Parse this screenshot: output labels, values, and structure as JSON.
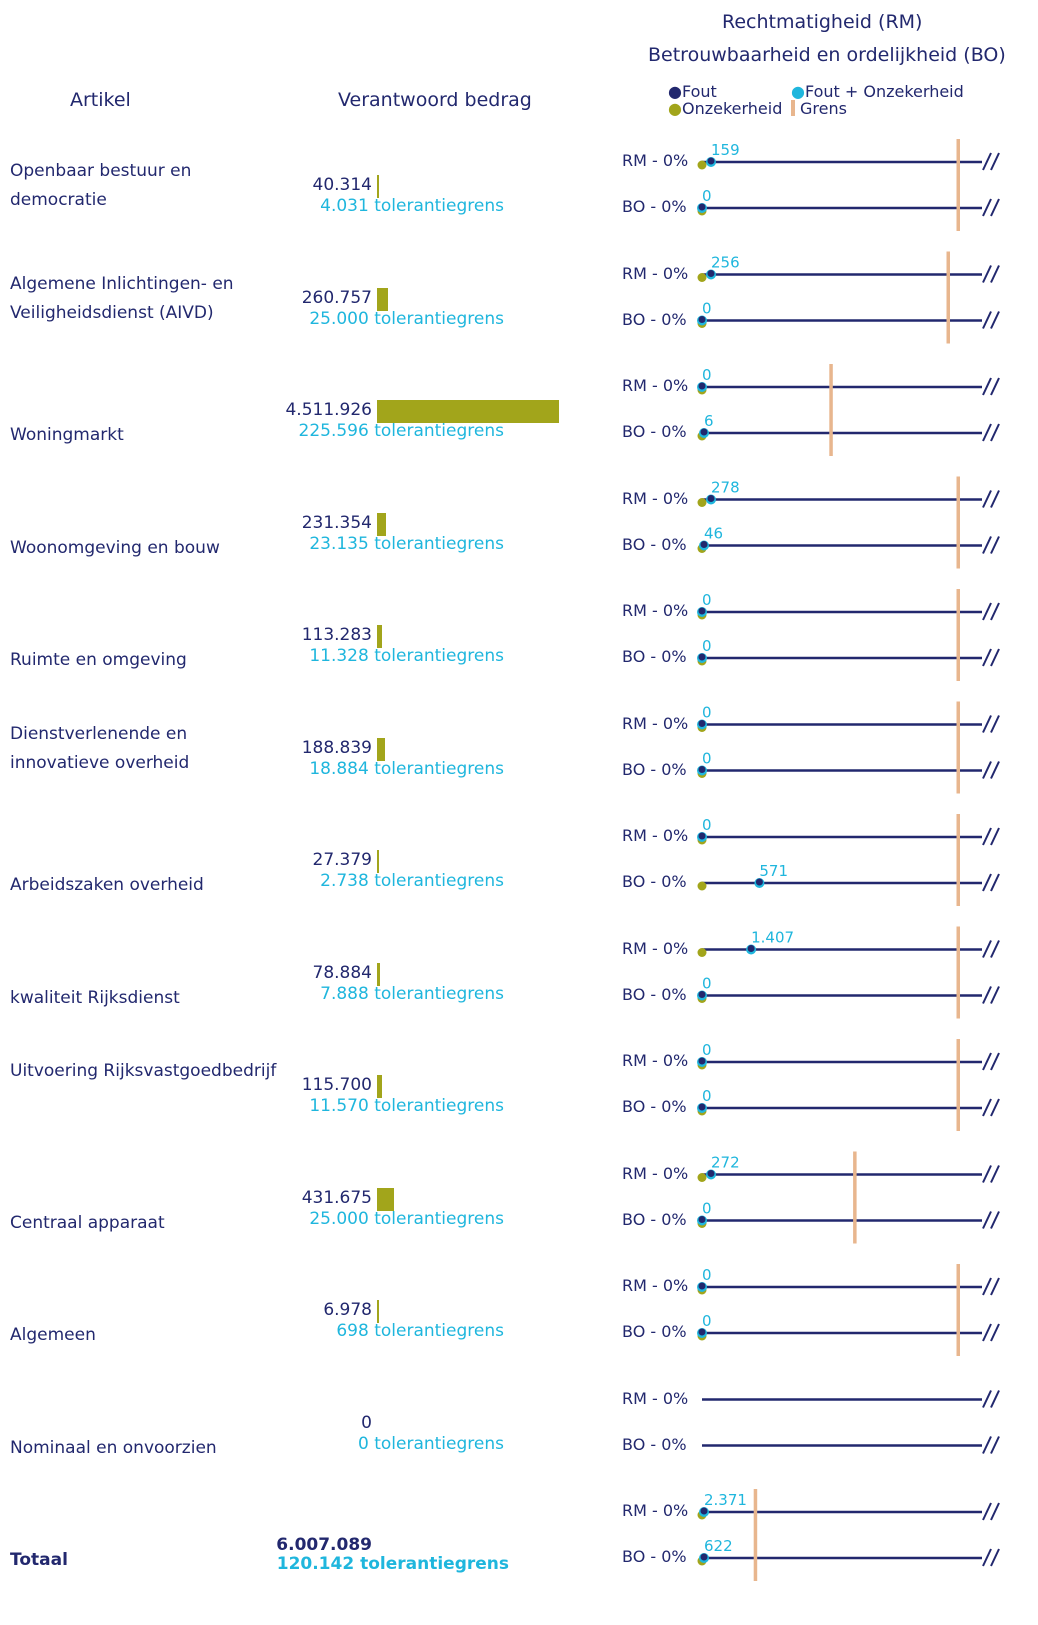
{
  "header": {
    "artikel": "Artikel",
    "verantwoord": "Verantwoord bedrag",
    "rm_title": "Rechtmatigheid (RM)",
    "bo_title": "Betrouwbaarheid en ordelijkheid (BO)"
  },
  "legend": {
    "fout": "Fout",
    "fout_onzekerheid": "Fout + Onzekerheid",
    "onzekerheid": "Onzekerheid",
    "grens": "Grens"
  },
  "colors": {
    "navy": "#22286e",
    "cyan": "#1fb6dd",
    "olive": "#a2a51b",
    "grens": "#e8b68e"
  },
  "tolerance_suffix": "tolerantiegrens",
  "row_labels": {
    "rm": "RM - 0%",
    "bo": "BO - 0%"
  },
  "chart_data": {
    "type": "bar",
    "bar_max": 4511926,
    "rows": [
      {
        "artikel": "Openbaar bestuur en democratie",
        "amount": 40314,
        "amount_label": "40.314",
        "tolerance_label": "4.031",
        "rm": {
          "value": 159,
          "label": "159",
          "fout": 159,
          "onzekerheid": 0
        },
        "bo": {
          "value": 0,
          "label": "0",
          "fout": 0,
          "onzekerheid": 0
        },
        "grens": 4031,
        "grens_frac": 0.983
      },
      {
        "artikel": "Algemene Inlichtingen- en Veiligheidsdienst (AIVD)",
        "amount": 260757,
        "amount_label": "260.757",
        "tolerance_label": "25.000",
        "rm": {
          "value": 256,
          "label": "256",
          "fout": 0,
          "onzekerheid": 0
        },
        "bo": {
          "value": 0,
          "label": "0",
          "fout": 0,
          "onzekerheid": 0
        },
        "grens": 25000,
        "grens_frac": 0.962
      },
      {
        "artikel": "Woningmarkt",
        "amount": 4511926,
        "amount_label": "4.511.926",
        "tolerance_label": "225.596",
        "rm": {
          "value": 0,
          "label": "0",
          "fout": 0,
          "onzekerheid": 0
        },
        "bo": {
          "value": 6,
          "label": "6",
          "fout": 0,
          "onzekerheid": 0
        },
        "grens": 225596,
        "grens_frac": 0.46
      },
      {
        "artikel": "Woonomgeving en bouw",
        "amount": 231354,
        "amount_label": "231.354",
        "tolerance_label": "23.135",
        "rm": {
          "value": 278,
          "label": "278",
          "fout": 0,
          "onzekerheid": 0
        },
        "bo": {
          "value": 46,
          "label": "46",
          "fout": 0,
          "onzekerheid": 0
        },
        "grens": 23135,
        "grens_frac": 0.983
      },
      {
        "artikel": "Ruimte en omgeving",
        "amount": 113283,
        "amount_label": "113.283",
        "tolerance_label": "11.328",
        "rm": {
          "value": 0,
          "label": "0",
          "fout": 0,
          "onzekerheid": 0
        },
        "bo": {
          "value": 0,
          "label": "0",
          "fout": 0,
          "onzekerheid": 0
        },
        "grens": 11328,
        "grens_frac": 0.983
      },
      {
        "artikel": "Dienstverlenende en innovatieve overheid",
        "amount": 188839,
        "amount_label": "188.839",
        "tolerance_label": "18.884",
        "rm": {
          "value": 0,
          "label": "0",
          "fout": 0,
          "onzekerheid": 0
        },
        "bo": {
          "value": 0,
          "label": "0",
          "fout": 0,
          "onzekerheid": 0
        },
        "grens": 18884,
        "grens_frac": 0.983
      },
      {
        "artikel": "Arbeidszaken overheid",
        "amount": 27379,
        "amount_label": "27.379",
        "tolerance_label": "2.738",
        "rm": {
          "value": 0,
          "label": "0",
          "fout": 0,
          "onzekerheid": 0
        },
        "bo": {
          "value": 571,
          "label": "571",
          "fout": 571,
          "onzekerheid": 0
        },
        "grens": 2738,
        "grens_frac": 0.983
      },
      {
        "artikel": "kwaliteit Rijksdienst",
        "amount": 78884,
        "amount_label": "78.884",
        "tolerance_label": "7.888",
        "rm": {
          "value": 1407,
          "label": "1.407",
          "fout": 1407,
          "onzekerheid": 0
        },
        "bo": {
          "value": 0,
          "label": "0",
          "fout": 0,
          "onzekerheid": 0
        },
        "grens": 7888,
        "grens_frac": 0.983
      },
      {
        "artikel": "Uitvoering Rijksvastgoedbedrijf",
        "amount": 115700,
        "amount_label": "115.700",
        "tolerance_label": "11.570",
        "rm": {
          "value": 0,
          "label": "0",
          "fout": 0,
          "onzekerheid": 0
        },
        "bo": {
          "value": 0,
          "label": "0",
          "fout": 0,
          "onzekerheid": 0
        },
        "grens": 11570,
        "grens_frac": 0.983
      },
      {
        "artikel": "Centraal apparaat",
        "amount": 431675,
        "amount_label": "431.675",
        "tolerance_label": "25.000",
        "rm": {
          "value": 272,
          "label": "272",
          "fout": 0,
          "onzekerheid": 0
        },
        "bo": {
          "value": 0,
          "label": "0",
          "fout": 0,
          "onzekerheid": 0
        },
        "grens": 25000,
        "grens_frac": 0.545
      },
      {
        "artikel": "Algemeen",
        "amount": 6978,
        "amount_label": "6.978",
        "tolerance_label": "698",
        "rm": {
          "value": 0,
          "label": "0",
          "fout": 0,
          "onzekerheid": 0
        },
        "bo": {
          "value": 0,
          "label": "0",
          "fout": 0,
          "onzekerheid": 0
        },
        "grens": 698,
        "grens_frac": 0.983
      },
      {
        "artikel": "Nominaal en onvoorzien",
        "amount": 0,
        "amount_label": "0",
        "tolerance_label": "0",
        "rm": null,
        "bo": null,
        "grens": 0,
        "grens_frac": null
      },
      {
        "artikel": "Totaal",
        "amount": 6007089,
        "amount_label": "6.007.089",
        "tolerance_label": "120.142",
        "rm": {
          "value": 2371,
          "label": "2.371",
          "fout": 0,
          "onzekerheid": 0
        },
        "bo": {
          "value": 622,
          "label": "622",
          "fout": 0,
          "onzekerheid": 0
        },
        "grens": 120142,
        "grens_frac": 0.19,
        "total": true
      }
    ]
  }
}
